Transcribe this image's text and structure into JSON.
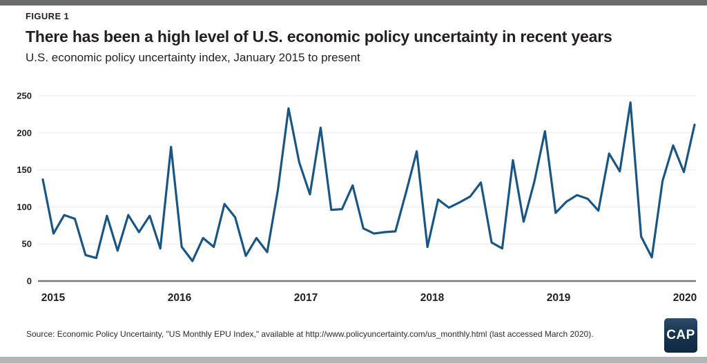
{
  "page": {
    "figure_label": "FIGURE 1",
    "title": "There has been a high level of U.S. economic policy uncertainty in recent years",
    "subtitle": "U.S. economic policy uncertainty index, January 2015 to present",
    "source": "Source: Economic Policy Uncertainty, \"US Monthly EPU Index,\" available at http://www.policyuncertainty.com/us_monthly.html (last accessed March 2020).",
    "logo_text": "CAP"
  },
  "colors": {
    "line": "#1a5683",
    "grid": "#e8e9ea",
    "axis": "#77787b",
    "tick_text": "#231f20",
    "top_bar": "#6a6b6e",
    "bottom_bar": "#b3b5b8",
    "logo_bg": "#17344f"
  },
  "chart_data": {
    "type": "line",
    "title": "There has been a high level of U.S. economic policy uncertainty in recent years",
    "subtitle": "U.S. economic policy uncertainty index, January 2015 to present",
    "series_name": "U.S. monthly economic policy uncertainty index",
    "legend": "none",
    "grid": true,
    "ylim": [
      0,
      250
    ],
    "y_ticks": [
      0,
      50,
      100,
      150,
      200,
      250
    ],
    "x_tick_labels": [
      "2015",
      "2016",
      "2017",
      "2018",
      "2019",
      "2020"
    ],
    "x": [
      "2015-01",
      "2015-02",
      "2015-03",
      "2015-04",
      "2015-05",
      "2015-06",
      "2015-07",
      "2015-08",
      "2015-09",
      "2015-10",
      "2015-11",
      "2015-12",
      "2016-01",
      "2016-02",
      "2016-03",
      "2016-04",
      "2016-05",
      "2016-06",
      "2016-07",
      "2016-08",
      "2016-09",
      "2016-10",
      "2016-11",
      "2016-12",
      "2017-01",
      "2017-02",
      "2017-03",
      "2017-04",
      "2017-05",
      "2017-06",
      "2017-07",
      "2017-08",
      "2017-09",
      "2017-10",
      "2017-11",
      "2017-12",
      "2018-01",
      "2018-02",
      "2018-03",
      "2018-04",
      "2018-05",
      "2018-06",
      "2018-07",
      "2018-08",
      "2018-09",
      "2018-10",
      "2018-11",
      "2018-12",
      "2019-01",
      "2019-02",
      "2019-03",
      "2019-04",
      "2019-05",
      "2019-06",
      "2019-07",
      "2019-08",
      "2019-09",
      "2019-10",
      "2019-11",
      "2019-12",
      "2020-01",
      "2020-02"
    ],
    "values": [
      137,
      64,
      89,
      84,
      35,
      31,
      88,
      41,
      89,
      66,
      88,
      44,
      181,
      46,
      27,
      58,
      46,
      104,
      86,
      34,
      58,
      39,
      123,
      233,
      160,
      117,
      207,
      96,
      97,
      129,
      71,
      64,
      66,
      67,
      120,
      175,
      46,
      110,
      99,
      106,
      114,
      133,
      52,
      44,
      163,
      80,
      134,
      202,
      92,
      107,
      116,
      111,
      95,
      172,
      148,
      241,
      60,
      32,
      135,
      183,
      147,
      211
    ]
  }
}
